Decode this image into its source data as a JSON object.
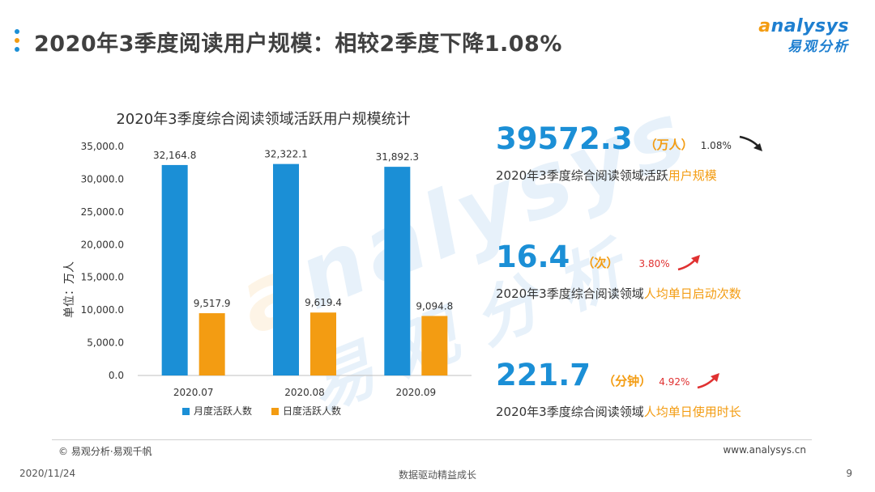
{
  "header": {
    "title": "2020年3季度阅读用户规模：相较2季度下降1.08%",
    "dot_colors": [
      "#1b8fd6",
      "#f39c12",
      "#1b8fd6"
    ]
  },
  "logo": {
    "en_prefix": "a",
    "en_rest": "nalysys",
    "cn": "易观分析"
  },
  "watermark": {
    "en_prefix": "a",
    "en_rest": "nalysys",
    "cn": "易观分析"
  },
  "chart_data": {
    "type": "bar",
    "title": "2020年3季度综合阅读领域活跃用户规模统计",
    "ylabel": "单位：万人",
    "xlabel": "",
    "categories": [
      "2020.07",
      "2020.08",
      "2020.09"
    ],
    "ylim": [
      0,
      35000
    ],
    "yticks": [
      0,
      5000,
      10000,
      15000,
      20000,
      25000,
      30000,
      35000
    ],
    "ytick_labels": [
      "0.0",
      "5,000.0",
      "10,000.0",
      "15,000.0",
      "20,000.0",
      "25,000.0",
      "30,000.0",
      "35,000.0"
    ],
    "grid": false,
    "legend_position": "bottom",
    "series": [
      {
        "name": "月度活跃人数",
        "color": "#1b8fd6",
        "values": [
          32164.8,
          32322.1,
          31892.3
        ],
        "labels": [
          "32,164.8",
          "32,322.1",
          "31,892.3"
        ]
      },
      {
        "name": "日度活跃人数",
        "color": "#f39c12",
        "values": [
          9517.9,
          9619.4,
          9094.8
        ],
        "labels": [
          "9,517.9",
          "9,619.4",
          "9,094.8"
        ]
      }
    ]
  },
  "kpis": [
    {
      "value": "39572.3",
      "unit": "（万人）",
      "change": "1.08%",
      "change_color": "#333333",
      "arrow": "down",
      "arrow_color": "#222222",
      "desc_prefix": "2020年3季度综合阅读领域活跃",
      "desc_highlight": "用户规模"
    },
    {
      "value": "16.4",
      "unit": "（次）",
      "change": "3.80%",
      "change_color": "#e03131",
      "arrow": "up",
      "arrow_color": "#e03131",
      "desc_prefix": "2020年3季度综合阅读领域",
      "desc_highlight": "人均单日启动次数"
    },
    {
      "value": "221.7",
      "unit": "（分钟）",
      "change": "4.92%",
      "change_color": "#e03131",
      "arrow": "up",
      "arrow_color": "#e03131",
      "desc_prefix": "2020年3季度综合阅读领域",
      "desc_highlight": "人均单日使用时长"
    }
  ],
  "footer": {
    "copyright": "© 易观分析·易观千帆",
    "website": "www.analysys.cn",
    "date": "2020/11/24",
    "slogan": "数据驱动精益成长",
    "page_number": "9"
  }
}
